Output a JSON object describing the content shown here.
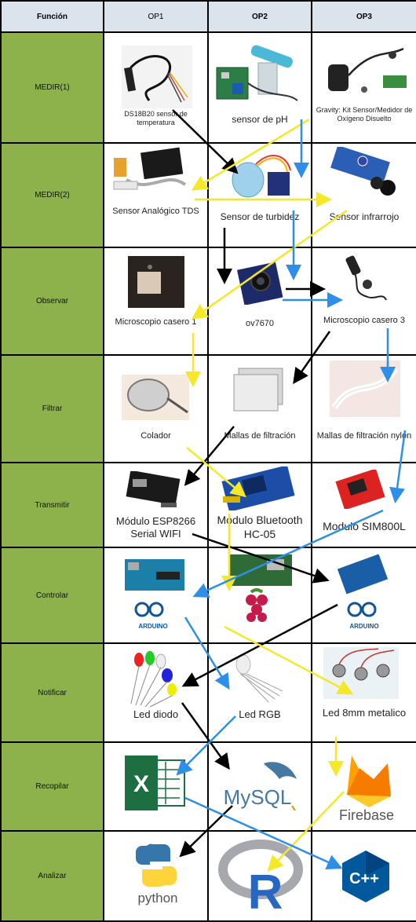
{
  "header": {
    "function_label": "Función",
    "options": [
      "OP1",
      "OP2",
      "OP3"
    ]
  },
  "rows": [
    {
      "function": "MEDIR(1)",
      "cells": [
        "DS18B20 sensor de temperatura",
        "sensor de pH",
        "Gravity: Kit Sensor/Medidor de Oxígeno Disuelto"
      ]
    },
    {
      "function": "MEDIR(2)",
      "cells": [
        "Sensor Analógico TDS",
        "Sensor de turbidez",
        "Sensor infrarrojo"
      ]
    },
    {
      "function": "Observar",
      "cells": [
        "Microscopio casero 1",
        "ov7670",
        "Microscopio casero 3"
      ]
    },
    {
      "function": "Filtrar",
      "cells": [
        "Colador",
        "Mallas de filtración",
        "Mallas de filtración nylon"
      ]
    },
    {
      "function": "Transmitir",
      "cells": [
        "Módulo ESP8266 Serial WIFI",
        "Módulo Bluetooth HC-05",
        "Modulo SIM800L"
      ]
    },
    {
      "function": "Controlar",
      "cells": [
        "",
        "",
        ""
      ]
    },
    {
      "function": "Notificar",
      "cells": [
        "Led diodo",
        "Led RGB",
        "Led 8mm metalico"
      ]
    },
    {
      "function": "Recopilar",
      "cells": [
        "",
        "",
        ""
      ]
    },
    {
      "function": "Analizar",
      "cells": [
        "",
        "",
        ""
      ]
    }
  ],
  "logos": {
    "arduino_1": "ARDUINO",
    "arduino_3": "ARDUINO",
    "excel": "X",
    "mysql": "MySQL",
    "firebase": "Firebase",
    "python": "python",
    "r": "R",
    "cpp": "C++"
  },
  "colors": {
    "function_column": "#8db24c",
    "header": "#dbe3ed",
    "arrow_black": "#000000",
    "arrow_yellow": "#f5e829",
    "arrow_blue": "#2e8fe8"
  }
}
